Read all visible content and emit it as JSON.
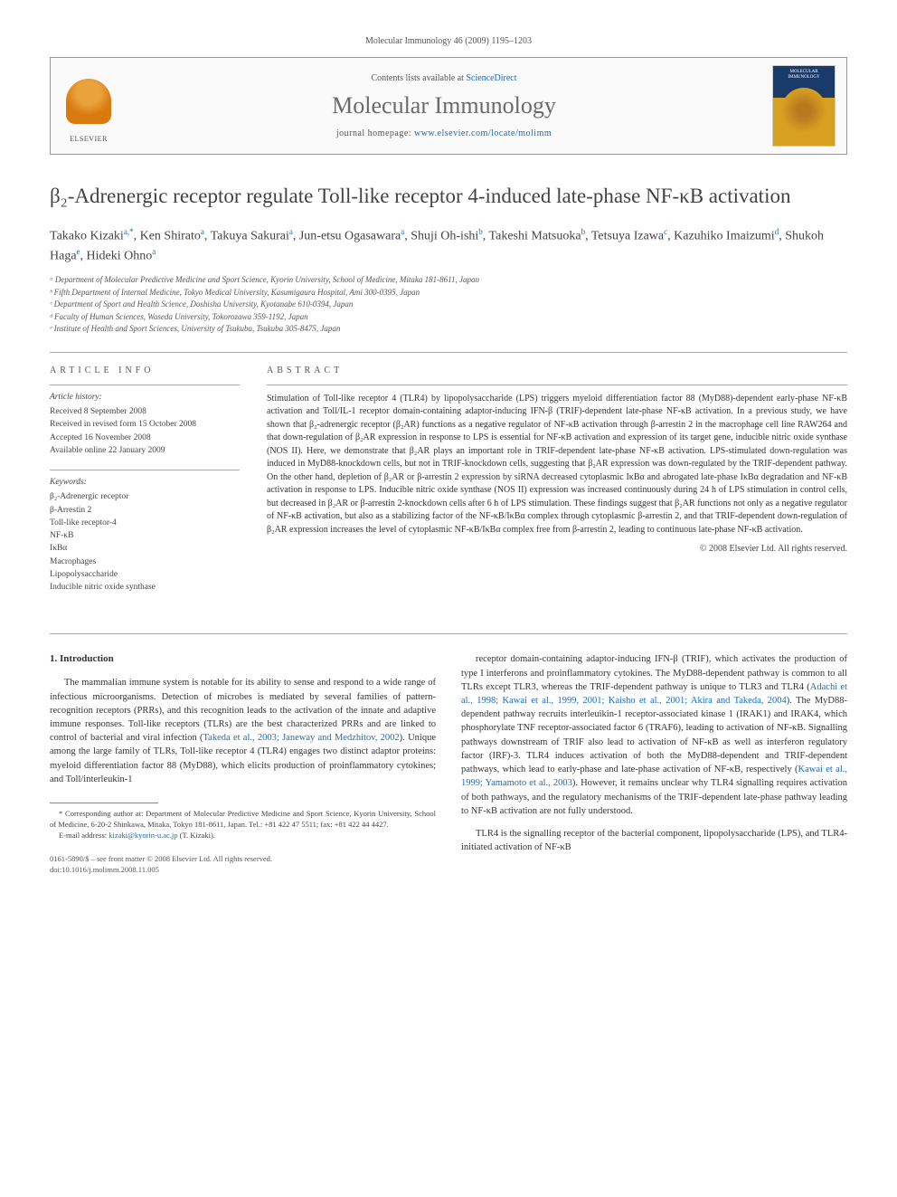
{
  "page_header": "Molecular Immunology 46 (2009) 1195–1203",
  "banner": {
    "contents_prefix": "Contents lists available at ",
    "contents_link": "ScienceDirect",
    "journal": "Molecular Immunology",
    "homepage_prefix": "journal homepage: ",
    "homepage_url": "www.elsevier.com/locate/molimm",
    "publisher": "ELSEVIER",
    "cover_label": "MOLECULAR IMMUNOLOGY"
  },
  "title": "β₂-Adrenergic receptor regulate Toll-like receptor 4-induced late-phase NF-κB activation",
  "authors_html": "Takako Kizaki<sup>a,*</sup>, Ken Shirato<sup>a</sup>, Takuya Sakurai<sup>a</sup>, Jun-etsu Ogasawara<sup>a</sup>, Shuji Oh-ishi<sup>b</sup>, Takeshi Matsuoka<sup>b</sup>, Tetsuya Izawa<sup>c</sup>, Kazuhiko Imaizumi<sup>d</sup>, Shukoh Haga<sup>e</sup>, Hideki Ohno<sup>a</sup>",
  "affiliations": [
    "ᵃ Department of Molecular Predictive Medicine and Sport Science, Kyorin University, School of Medicine, Mitaka 181-8611, Japan",
    "ᵇ Fifth Department of Internal Medicine, Tokyo Medical University, Kasumigaura Hospital, Ami 300-0395, Japan",
    "ᶜ Department of Sport and Health Science, Doshisha University, Kyotanabe 610-0394, Japan",
    "ᵈ Faculty of Human Sciences, Waseda University, Tokorozawa 359-1192, Japan",
    "ᵉ Institute of Health and Sport Sciences, University of Tsukuba, Tsukuba 305-8475, Japan"
  ],
  "info_heading": "ARTICLE INFO",
  "abstract_heading": "ABSTRACT",
  "history": {
    "label": "Article history:",
    "lines": [
      "Received 8 September 2008",
      "Received in revised form 15 October 2008",
      "Accepted 16 November 2008",
      "Available online 22 January 2009"
    ]
  },
  "keywords": {
    "label": "Keywords:",
    "items": [
      "β₂-Adrenergic receptor",
      "β-Arrestin 2",
      "Toll-like receptor-4",
      "NF-κB",
      "IκBα",
      "Macrophages",
      "Lipopolysaccharide",
      "Inducible nitric oxide synthase"
    ]
  },
  "abstract": "Stimulation of Toll-like receptor 4 (TLR4) by lipopolysaccharide (LPS) triggers myeloid differentiation factor 88 (MyD88)-dependent early-phase NF-κB activation and Toll/IL-1 receptor domain-containing adaptor-inducing IFN-β (TRIF)-dependent late-phase NF-κB activation. In a previous study, we have shown that β₂-adrenergic receptor (β₂AR) functions as a negative regulator of NF-κB activation through β-arrestin 2 in the macrophage cell line RAW264 and that down-regulation of β₂AR expression in response to LPS is essential for NF-κB activation and expression of its target gene, inducible nitric oxide synthase (NOS II). Here, we demonstrate that β₂AR plays an important role in TRIF-dependent late-phase NF-κB activation. LPS-stimulated down-regulation was induced in MyD88-knockdown cells, but not in TRIF-knockdown cells, suggesting that β₂AR expression was down-regulated by the TRIF-dependent pathway. On the other hand, depletion of β₂AR or β-arrestin 2 expression by siRNA decreased cytoplasmic IκBα and abrogated late-phase IκBα degradation and NF-κB activation in response to LPS. Inducible nitric oxide synthase (NOS II) expression was increased continuously during 24 h of LPS stimulation in control cells, but decreased in β₂AR or β-arrestin 2-knockdown cells after 6 h of LPS stimulation. These findings suggest that β₂AR functions not only as a negative regulator of NF-κB activation, but also as a stabilizing factor of the NF-κB/IκBα complex through cytoplasmic β-arrestin 2, and that TRIF-dependent down-regulation of β₂AR expression increases the level of cytoplasmic NF-κB/IκBα complex free from β-arrestin 2, leading to continuous late-phase NF-κB activation.",
  "copyright": "© 2008 Elsevier Ltd. All rights reserved.",
  "section1_heading": "1. Introduction",
  "body_left_p1_a": "The mammalian immune system is notable for its ability to sense and respond to a wide range of infectious microorganisms. Detection of microbes is mediated by several families of pattern-recognition receptors (PRRs), and this recognition leads to the activation of the innate and adaptive immune responses. Toll-like receptors (TLRs) are the best characterized PRRs and are linked to control of bacterial and viral infection (",
  "body_left_cite1": "Takeda et al., 2003; Janeway and Medzhitov, 2002",
  "body_left_p1_b": "). Unique among the large family of TLRs, Toll-like receptor 4 (TLR4) engages two distinct adaptor proteins: myeloid differentiation factor 88 (MyD88), which elicits production of proinflammatory cytokines; and Toll/interleukin-1",
  "body_right_p1_a": "receptor domain-containing adaptor-inducing IFN-β (TRIF), which activates the production of type I interferons and proinflammatory cytokines. The MyD88-dependent pathway is common to all TLRs except TLR3, whereas the TRIF-dependent pathway is unique to TLR3 and TLR4 (",
  "body_right_cite1": "Adachi et al., 1998; Kawai et al., 1999, 2001; Kaisho et al., 2001; Akira and Takeda, 2004",
  "body_right_p1_b": "). The MyD88-dependent pathway recruits interleuikin-1 receptor-associated kinase 1 (IRAK1) and IRAK4, which phosphorylate TNF receptor-associated factor 6 (TRAF6), leading to activation of NF-κB. Signalling pathways downstream of TRIF also lead to activation of NF-κB as well as interferon regulatory factor (IRF)-3. TLR4 induces activation of both the MyD88-dependent and TRIF-dependent pathways, which lead to early-phase and late-phase activation of NF-κB, respectively (",
  "body_right_cite2": "Kawai et al., 1999; Yamamoto et al., 2003",
  "body_right_p1_c": "). However, it remains unclear why TLR4 signalling requires activation of both pathways, and the regulatory mechanisms of the TRIF-dependent late-phase pathway leading to NF-κB activation are not fully understood.",
  "body_right_p2": "TLR4 is the signalling receptor of the bacterial component, lipopolysaccharide (LPS), and TLR4-initiated activation of NF-κB",
  "footnote": {
    "corresponding": "* Corresponding author at: Department of Molecular Predictive Medicine and Sport Science, Kyorin University, School of Medicine, 6-20-2 Shinkawa, Mitaka, Tokyo 181-8611, Japan. Tel.: +81 422 47 5511; fax: +81 422 44 4427.",
    "email_label": "E-mail address: ",
    "email": "kizaki@kyorin-u.ac.jp",
    "email_suffix": " (T. Kizaki)."
  },
  "bottom": {
    "issn": "0161-5890/$ – see front matter © 2008 Elsevier Ltd. All rights reserved.",
    "doi": "doi:10.1016/j.molimm.2008.11.005"
  },
  "colors": {
    "link": "#1a6bb8",
    "text": "#333333",
    "heading_gray": "#6a6a6a",
    "rule": "#aaaaaa"
  },
  "typography": {
    "title_fontsize": 23,
    "journal_fontsize": 26,
    "body_fontsize": 10.5,
    "abstract_fontsize": 10,
    "affil_fontsize": 9,
    "footnote_fontsize": 8.5
  }
}
